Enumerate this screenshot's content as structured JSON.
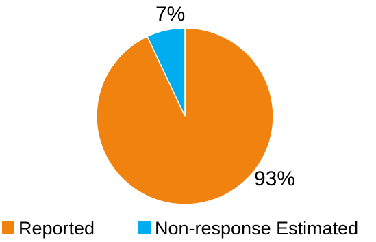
{
  "chart_data": {
    "type": "pie",
    "title": "",
    "slices": [
      {
        "name": "Reported",
        "value": 93,
        "label": "93%",
        "color": "#F0820F"
      },
      {
        "name": "Non-response Estimated",
        "value": 7,
        "label": "7%",
        "color": "#00AEEF"
      }
    ],
    "start": "12 o'clock",
    "direction": "clockwise",
    "legend": {
      "placement": "bottom",
      "items": [
        "Reported",
        "Non-response Estimated"
      ]
    }
  }
}
